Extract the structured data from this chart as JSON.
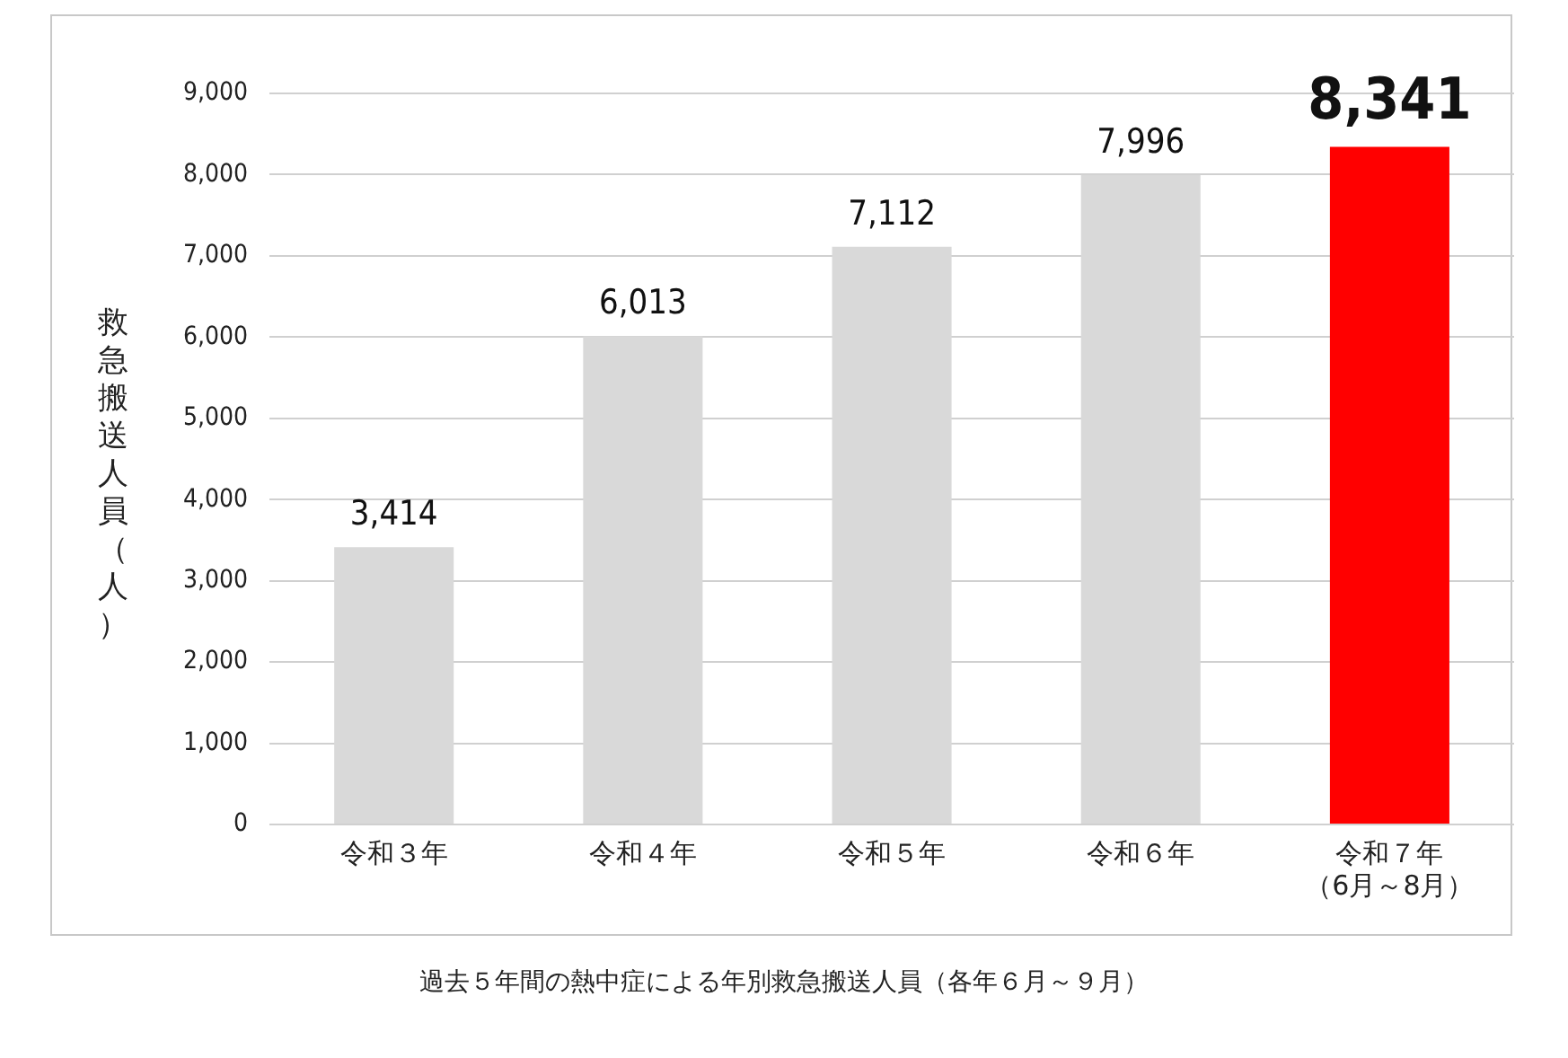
{
  "chart_data": {
    "type": "bar",
    "ylabel": "救急搬送人員（人）",
    "categories": [
      "令和３年",
      "令和４年",
      "令和５年",
      "令和６年",
      "令和７年（6月～8月）"
    ],
    "values": [
      3414,
      6013,
      7112,
      7996,
      8341
    ],
    "value_labels": [
      "3,414",
      "6,013",
      "7,112",
      "7,996",
      "8,341"
    ],
    "colors": [
      "#d9d9d9",
      "#d9d9d9",
      "#d9d9d9",
      "#d9d9d9",
      "#ff0000"
    ],
    "ylim": [
      0,
      9000
    ],
    "yticks": [
      0,
      {
        "value": 1000,
        "label": "1,000"
      },
      {
        "value": 2000,
        "label": "2,000"
      },
      {
        "value": 3000,
        "label": "3,000"
      },
      {
        "value": 4000,
        "label": "4,000"
      },
      {
        "value": 5000,
        "label": "5,000"
      },
      {
        "value": 6000,
        "label": "6,000"
      },
      {
        "value": 7000,
        "label": "7,000"
      },
      {
        "value": 8000,
        "label": "8,000"
      },
      {
        "value": 9000,
        "label": "9,000"
      }
    ],
    "grid": "y",
    "legend": false,
    "annotations": [
      "過去５年間の熱中症による年別救急搬送人員（各年６月～９月）"
    ]
  }
}
